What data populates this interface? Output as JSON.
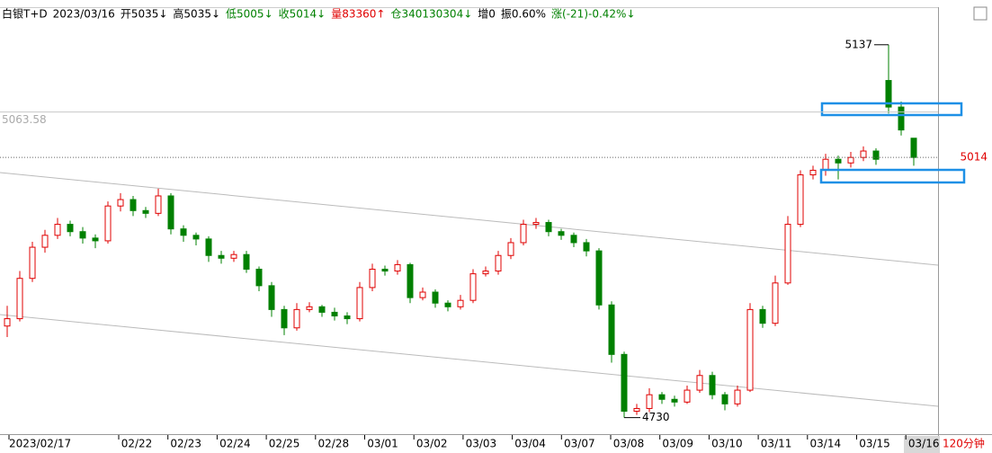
{
  "chart_data": {
    "type": "candlestick",
    "header": [
      {
        "text": "白银T+D",
        "color": "#000000"
      },
      {
        "text": "2023/03/16",
        "color": "#000000"
      },
      {
        "text": "开5035↓",
        "color": "#000000"
      },
      {
        "text": "高5035↓",
        "color": "#000000"
      },
      {
        "text": "低5005↓",
        "color": "#008000"
      },
      {
        "text": "收5014↓",
        "color": "#008000"
      },
      {
        "text": "量83360↑",
        "color": "#e00000"
      },
      {
        "text": "仓340130304↓",
        "color": "#008000"
      },
      {
        "text": "增0",
        "color": "#000000"
      },
      {
        "text": "振0.60%",
        "color": "#000000"
      },
      {
        "text": "涨(-21)-0.42%↓",
        "color": "#008000"
      }
    ],
    "period": "120分钟",
    "x_labels": [
      "2023/02/17",
      "02/22",
      "02/23",
      "02/24",
      "02/25",
      "02/28",
      "03/01",
      "03/02",
      "03/03",
      "03/04",
      "03/07",
      "03/08",
      "03/09",
      "03/10",
      "03/11",
      "03/14",
      "03/15",
      "03/16"
    ],
    "ylim": [
      4712,
      5178
    ],
    "level_line": 5063.58,
    "last_price": 5014,
    "high_index": 70,
    "low_index": 49,
    "up_color": "#e00000",
    "down_color": "#008000",
    "candles": [
      [
        4830,
        4852,
        4818,
        4838
      ],
      [
        4838,
        4890,
        4835,
        4882
      ],
      [
        4882,
        4922,
        4878,
        4916
      ],
      [
        4916,
        4935,
        4910,
        4929
      ],
      [
        4929,
        4948,
        4925,
        4941
      ],
      [
        4941,
        4945,
        4928,
        4933
      ],
      [
        4933,
        4938,
        4920,
        4926
      ],
      [
        4926,
        4930,
        4915,
        4923
      ],
      [
        4923,
        4966,
        4920,
        4961
      ],
      [
        4961,
        4975,
        4955,
        4968
      ],
      [
        4968,
        4972,
        4950,
        4956
      ],
      [
        4956,
        4960,
        4948,
        4953
      ],
      [
        4953,
        4980,
        4950,
        4972
      ],
      [
        4972,
        4975,
        4930,
        4936
      ],
      [
        4936,
        4940,
        4922,
        4929
      ],
      [
        4929,
        4932,
        4918,
        4925
      ],
      [
        4925,
        4928,
        4900,
        4907
      ],
      [
        4907,
        4912,
        4898,
        4904
      ],
      [
        4904,
        4912,
        4900,
        4908
      ],
      [
        4908,
        4912,
        4888,
        4892
      ],
      [
        4892,
        4895,
        4868,
        4874
      ],
      [
        4874,
        4878,
        4840,
        4848
      ],
      [
        4848,
        4852,
        4820,
        4828
      ],
      [
        4828,
        4855,
        4825,
        4848
      ],
      [
        4848,
        4856,
        4845,
        4851
      ],
      [
        4851,
        4853,
        4840,
        4845
      ],
      [
        4845,
        4850,
        4836,
        4841
      ],
      [
        4841,
        4845,
        4832,
        4838
      ],
      [
        4838,
        4878,
        4835,
        4872
      ],
      [
        4872,
        4898,
        4868,
        4892
      ],
      [
        4892,
        4896,
        4885,
        4890
      ],
      [
        4890,
        4902,
        4886,
        4897
      ],
      [
        4897,
        4899,
        4855,
        4861
      ],
      [
        4861,
        4872,
        4858,
        4867
      ],
      [
        4867,
        4870,
        4850,
        4855
      ],
      [
        4855,
        4858,
        4846,
        4851
      ],
      [
        4851,
        4864,
        4848,
        4858
      ],
      [
        4858,
        4892,
        4855,
        4887
      ],
      [
        4887,
        4895,
        4884,
        4890
      ],
      [
        4890,
        4912,
        4886,
        4907
      ],
      [
        4907,
        4926,
        4903,
        4921
      ],
      [
        4921,
        4946,
        4918,
        4941
      ],
      [
        4941,
        4948,
        4936,
        4943
      ],
      [
        4943,
        4946,
        4928,
        4933
      ],
      [
        4933,
        4936,
        4924,
        4929
      ],
      [
        4929,
        4932,
        4916,
        4921
      ],
      [
        4921,
        4925,
        4906,
        4912
      ],
      [
        4912,
        4915,
        4848,
        4853
      ],
      [
        4853,
        4857,
        4790,
        4799
      ],
      [
        4799,
        4802,
        4730,
        4737
      ],
      [
        4737,
        4745,
        4733,
        4740
      ],
      [
        4740,
        4762,
        4736,
        4755
      ],
      [
        4755,
        4758,
        4745,
        4750
      ],
      [
        4750,
        4754,
        4742,
        4747
      ],
      [
        4747,
        4765,
        4745,
        4760
      ],
      [
        4760,
        4782,
        4757,
        4776
      ],
      [
        4776,
        4780,
        4750,
        4755
      ],
      [
        4755,
        4758,
        4738,
        4745
      ],
      [
        4745,
        4765,
        4742,
        4760
      ],
      [
        4760,
        4855,
        4758,
        4848
      ],
      [
        4848,
        4852,
        4828,
        4833
      ],
      [
        4833,
        4885,
        4830,
        4877
      ],
      [
        4877,
        4950,
        4875,
        4941
      ],
      [
        4941,
        5000,
        4938,
        4995
      ],
      [
        4995,
        5005,
        4990,
        5000
      ],
      [
        5000,
        5018,
        4994,
        5012
      ],
      [
        5012,
        5016,
        4990,
        5008
      ],
      [
        5008,
        5020,
        5003,
        5014
      ],
      [
        5014,
        5026,
        5010,
        5021
      ],
      [
        5021,
        5024,
        5006,
        5012
      ],
      [
        5098,
        5137,
        5062,
        5069
      ],
      [
        5069,
        5075,
        5038,
        5044
      ],
      [
        5035,
        5035,
        5005,
        5014
      ]
    ]
  }
}
